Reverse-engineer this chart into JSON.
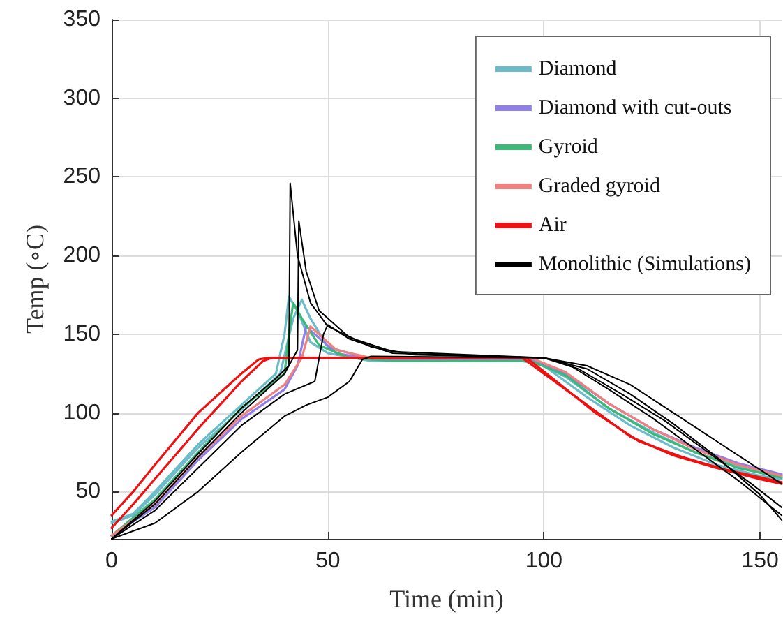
{
  "chart_data": {
    "type": "line",
    "xlabel": "Time (min)",
    "ylabel": "Temp (∘C)",
    "xlim": [
      0,
      155
    ],
    "xticks": [
      0,
      50,
      100,
      150
    ],
    "ylim": [
      20,
      350
    ],
    "yticks": [
      50,
      100,
      150,
      200,
      250,
      300,
      350
    ],
    "grid": true,
    "legend": "top right",
    "marker": "none",
    "line_style": "solid",
    "series": [
      {
        "name": "Diamond",
        "color": "#6bbcc8",
        "x": [
          0,
          5,
          10,
          20,
          30,
          38,
          40,
          41,
          43,
          46,
          50,
          60,
          95,
          100,
          110,
          120,
          130,
          140,
          150,
          155
        ],
        "values": [
          31,
          36,
          50,
          80,
          105,
          125,
          150,
          174,
          165,
          145,
          138,
          133,
          133,
          130,
          110,
          92,
          78,
          67,
          60,
          58
        ]
      },
      {
        "color": "#6bbcc8",
        "x": [
          0,
          5,
          10,
          20,
          30,
          39,
          42,
          44,
          46,
          50,
          60,
          97,
          105,
          115,
          125,
          135,
          145,
          155
        ],
        "values": [
          30,
          35,
          48,
          78,
          102,
          125,
          160,
          172,
          160,
          142,
          134,
          134,
          123,
          103,
          88,
          75,
          66,
          60
        ]
      },
      {
        "name": "Diamond with cut-outs",
        "color": "#8f7fe8",
        "x": [
          0,
          10,
          20,
          30,
          40,
          43,
          45,
          47,
          52,
          60,
          97,
          105,
          115,
          125,
          135,
          145,
          155
        ],
        "values": [
          22,
          40,
          70,
          96,
          115,
          130,
          155,
          150,
          138,
          134,
          134,
          125,
          106,
          90,
          78,
          68,
          61
        ]
      },
      {
        "name": "Gyroid",
        "color": "#3cb878",
        "x": [
          0,
          10,
          20,
          30,
          40,
          41,
          42,
          44,
          48,
          55,
          65,
          97,
          105,
          115,
          125,
          135,
          145,
          155
        ],
        "values": [
          22,
          45,
          75,
          103,
          125,
          150,
          170,
          160,
          143,
          135,
          133,
          133,
          124,
          103,
          87,
          75,
          65,
          59
        ]
      },
      {
        "name": "Graded gyroid",
        "color": "#f08080",
        "x": [
          0,
          10,
          20,
          30,
          40,
          44,
          46,
          48,
          52,
          60,
          97,
          105,
          115,
          125,
          135,
          145,
          155
        ],
        "values": [
          22,
          42,
          72,
          98,
          118,
          135,
          155,
          150,
          140,
          135,
          135,
          126,
          106,
          90,
          77,
          67,
          60
        ]
      },
      {
        "name": "Air",
        "color": "#ee1111",
        "x": [
          0,
          5,
          10,
          20,
          30,
          34,
          36,
          95,
          100,
          110,
          120,
          130,
          140,
          150,
          155
        ],
        "values": [
          35,
          50,
          67,
          100,
          125,
          134,
          135,
          135,
          125,
          105,
          85,
          73,
          65,
          58,
          55
        ]
      },
      {
        "color": "#ee1111",
        "x": [
          0,
          5,
          10,
          20,
          30,
          35,
          37,
          96,
          102,
          112,
          122,
          132,
          142,
          155
        ],
        "values": [
          27,
          42,
          58,
          90,
          120,
          133,
          135,
          135,
          122,
          100,
          82,
          72,
          64,
          56
        ]
      },
      {
        "name": "Monolithic (Simulations)",
        "color": "#000000",
        "x": [
          0,
          10,
          20,
          30,
          38,
          41,
          41.3,
          43,
          46,
          50,
          60,
          70,
          100,
          105,
          115,
          125,
          135,
          145,
          155
        ],
        "values": [
          20,
          44,
          74,
          103,
          122,
          130,
          246,
          200,
          170,
          155,
          142,
          137,
          135,
          132,
          115,
          97,
          77,
          57,
          35
        ]
      },
      {
        "color": "#000000",
        "x": [
          0,
          10,
          20,
          30,
          40,
          43,
          43.3,
          45,
          48,
          55,
          65,
          100,
          108,
          118,
          128,
          138,
          148,
          155
        ],
        "values": [
          20,
          42,
          72,
          100,
          125,
          140,
          222,
          190,
          165,
          148,
          139,
          135,
          128,
          112,
          95,
          75,
          55,
          40
        ]
      },
      {
        "color": "#000000",
        "x": [
          0,
          10,
          20,
          30,
          40,
          47,
          49,
          50,
          55,
          65,
          100,
          110,
          120,
          130,
          140,
          150,
          155
        ],
        "values": [
          20,
          38,
          65,
          92,
          112,
          120,
          150,
          156,
          147,
          138,
          135,
          130,
          118,
          100,
          82,
          64,
          55
        ]
      },
      {
        "color": "#000000",
        "x": [
          0,
          10,
          20,
          30,
          40,
          45,
          50,
          55,
          58,
          60,
          100,
          110,
          120,
          130,
          140,
          150,
          155
        ],
        "values": [
          20,
          30,
          50,
          75,
          98,
          105,
          110,
          120,
          134,
          136,
          135,
          128,
          112,
          93,
          72,
          48,
          32
        ]
      }
    ]
  }
}
